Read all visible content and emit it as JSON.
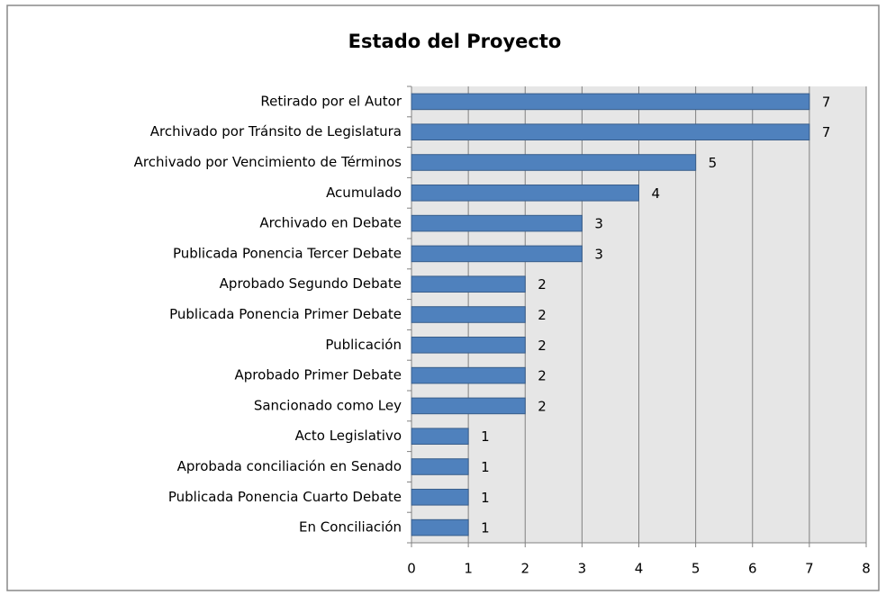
{
  "chart_data": {
    "type": "bar",
    "orientation": "horizontal",
    "title": "Estado del Proyecto",
    "categories": [
      "Retirado por el Autor",
      "Archivado por Tránsito de Legislatura",
      "Archivado por Vencimiento de Términos",
      "Acumulado",
      "Archivado en Debate",
      "Publicada Ponencia Tercer Debate",
      "Aprobado Segundo Debate",
      "Publicada Ponencia Primer Debate",
      "Publicación",
      "Aprobado Primer Debate",
      "Sancionado como Ley",
      "Acto Legislativo",
      "Aprobada conciliación en Senado",
      "Publicada Ponencia Cuarto Debate",
      "En Conciliación"
    ],
    "values": [
      7,
      7,
      5,
      4,
      3,
      3,
      2,
      2,
      2,
      2,
      2,
      1,
      1,
      1,
      1
    ],
    "color": "#4f81bd",
    "xlim": [
      0,
      8
    ],
    "xticks": [
      0,
      1,
      2,
      3,
      4,
      5,
      6,
      7,
      8
    ],
    "grid": true
  }
}
